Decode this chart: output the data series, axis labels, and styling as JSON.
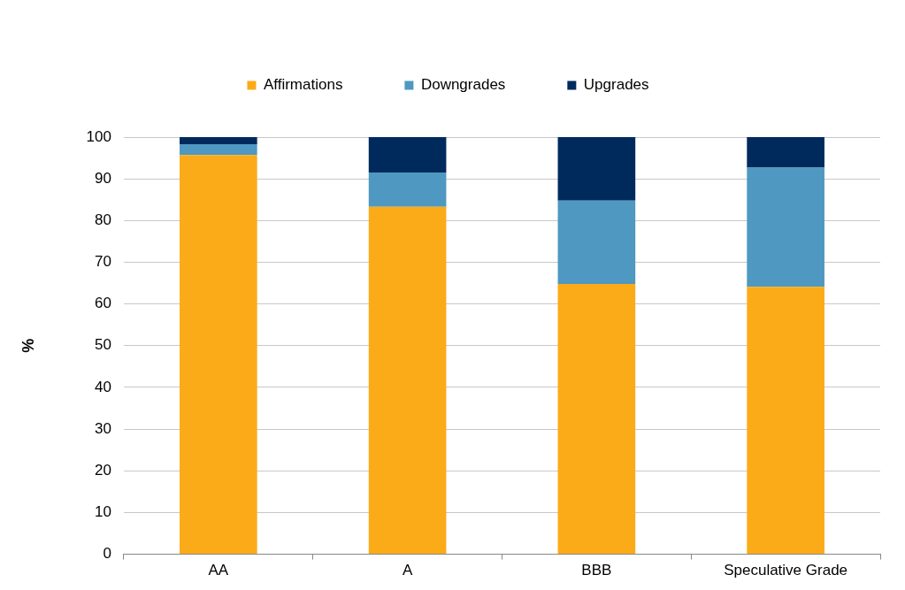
{
  "chart_data": {
    "type": "bar",
    "stacked": true,
    "ylabel": "%",
    "categories": [
      "AA",
      "A",
      "BBB",
      "Speculative Grade"
    ],
    "series": [
      {
        "name": "Affirmations",
        "color": "#fbab18",
        "values": [
          95.7,
          83.3,
          64.8,
          64.1
        ]
      },
      {
        "name": "Downgrades",
        "color": "#4e98c1",
        "values": [
          2.6,
          8.2,
          20.0,
          28.6
        ]
      },
      {
        "name": "Upgrades",
        "color": "#002a5c",
        "values": [
          1.7,
          8.5,
          15.2,
          7.3
        ]
      }
    ],
    "ylim": [
      0,
      100
    ],
    "yticks": [
      0,
      10,
      20,
      30,
      40,
      50,
      60,
      70,
      80,
      90,
      100
    ],
    "grid": "y",
    "legend": "top"
  }
}
